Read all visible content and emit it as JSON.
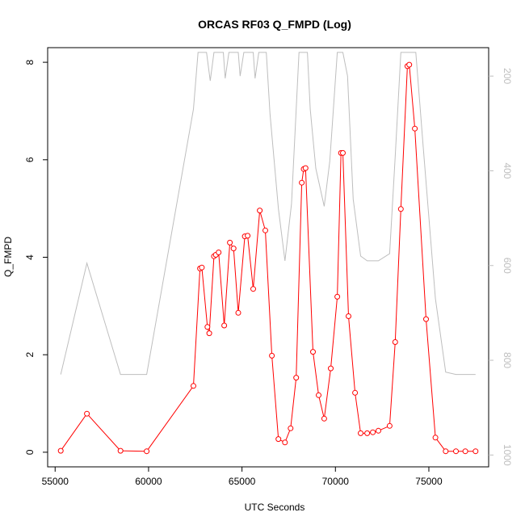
{
  "chart_data": {
    "type": "line",
    "title": "ORCAS RF03 Q_FMPD (Log)",
    "xlabel": "UTC Seconds",
    "ylabel": "Q_FMPD",
    "xlim": [
      54600,
      78200
    ],
    "ylim": [
      -0.3,
      8.3
    ],
    "x_ticks": [
      55000,
      60000,
      65000,
      70000,
      75000
    ],
    "x_tick_labels": [
      "55000",
      "60000",
      "65000",
      "70000",
      "75000"
    ],
    "y_ticks": [
      0,
      2,
      4,
      6,
      8
    ],
    "y_tick_labels": [
      "0",
      "2",
      "4",
      "6",
      "8"
    ],
    "y2_ticks": [
      200,
      400,
      600,
      800,
      1000
    ],
    "y2_tick_labels": [
      "200",
      "400",
      "600",
      "800",
      "1000"
    ],
    "y2lim": [
      1025,
      140
    ],
    "grid": false,
    "legend": "none",
    "series": [
      {
        "color": "#ff0000",
        "marker": "open-circle",
        "axis": "left",
        "points": [
          [
            55300,
            0.03
          ],
          [
            56700,
            0.79
          ],
          [
            58500,
            0.03
          ],
          [
            59900,
            0.02
          ],
          [
            62400,
            1.36
          ],
          [
            62750,
            3.77
          ],
          [
            62850,
            3.79
          ],
          [
            63150,
            2.57
          ],
          [
            63250,
            2.44
          ],
          [
            63500,
            4.02
          ],
          [
            63600,
            4.05
          ],
          [
            63750,
            4.1
          ],
          [
            64050,
            2.6
          ],
          [
            64350,
            4.3
          ],
          [
            64550,
            4.18
          ],
          [
            64800,
            2.86
          ],
          [
            65150,
            4.43
          ],
          [
            65300,
            4.44
          ],
          [
            65600,
            3.35
          ],
          [
            65950,
            4.96
          ],
          [
            66250,
            4.55
          ],
          [
            66600,
            1.98
          ],
          [
            66950,
            0.27
          ],
          [
            67300,
            0.2
          ],
          [
            67600,
            0.49
          ],
          [
            67900,
            1.53
          ],
          [
            68200,
            5.53
          ],
          [
            68300,
            5.81
          ],
          [
            68400,
            5.83
          ],
          [
            68800,
            2.06
          ],
          [
            69100,
            1.17
          ],
          [
            69400,
            0.69
          ],
          [
            69750,
            1.72
          ],
          [
            70100,
            3.19
          ],
          [
            70300,
            6.14
          ],
          [
            70400,
            6.14
          ],
          [
            70700,
            2.79
          ],
          [
            71050,
            1.22
          ],
          [
            71350,
            0.39
          ],
          [
            71700,
            0.39
          ],
          [
            72000,
            0.41
          ],
          [
            72300,
            0.44
          ],
          [
            72900,
            0.54
          ],
          [
            73200,
            2.26
          ],
          [
            73500,
            4.99
          ],
          [
            73850,
            7.92
          ],
          [
            73950,
            7.95
          ],
          [
            74250,
            6.64
          ],
          [
            74850,
            2.73
          ],
          [
            75350,
            0.3
          ],
          [
            75900,
            0.02
          ],
          [
            76450,
            0.02
          ],
          [
            76950,
            0.02
          ],
          [
            77500,
            0.02
          ]
        ]
      },
      {
        "color": "#bebebe",
        "marker": "none",
        "axis": "right",
        "points": [
          [
            55300,
            830
          ],
          [
            56700,
            595
          ],
          [
            58500,
            830
          ],
          [
            59900,
            830
          ],
          [
            62400,
            270
          ],
          [
            62650,
            150
          ],
          [
            62850,
            150
          ],
          [
            63100,
            150
          ],
          [
            63300,
            210
          ],
          [
            63500,
            150
          ],
          [
            63750,
            150
          ],
          [
            64000,
            150
          ],
          [
            64100,
            205
          ],
          [
            64300,
            150
          ],
          [
            64550,
            150
          ],
          [
            64800,
            150
          ],
          [
            64900,
            200
          ],
          [
            65100,
            150
          ],
          [
            65400,
            150
          ],
          [
            65600,
            150
          ],
          [
            65700,
            205
          ],
          [
            65900,
            150
          ],
          [
            66300,
            150
          ],
          [
            66500,
            280
          ],
          [
            66950,
            480
          ],
          [
            67300,
            590
          ],
          [
            67650,
            470
          ],
          [
            68050,
            150
          ],
          [
            68500,
            150
          ],
          [
            68650,
            270
          ],
          [
            68950,
            395
          ],
          [
            69400,
            475
          ],
          [
            69700,
            380
          ],
          [
            70100,
            150
          ],
          [
            70400,
            150
          ],
          [
            70650,
            200
          ],
          [
            70950,
            460
          ],
          [
            71350,
            580
          ],
          [
            71700,
            590
          ],
          [
            72300,
            590
          ],
          [
            72900,
            575
          ],
          [
            73200,
            370
          ],
          [
            73500,
            150
          ],
          [
            74300,
            150
          ],
          [
            74700,
            350
          ],
          [
            75350,
            670
          ],
          [
            75900,
            825
          ],
          [
            76450,
            830
          ],
          [
            77500,
            830
          ]
        ]
      }
    ]
  }
}
